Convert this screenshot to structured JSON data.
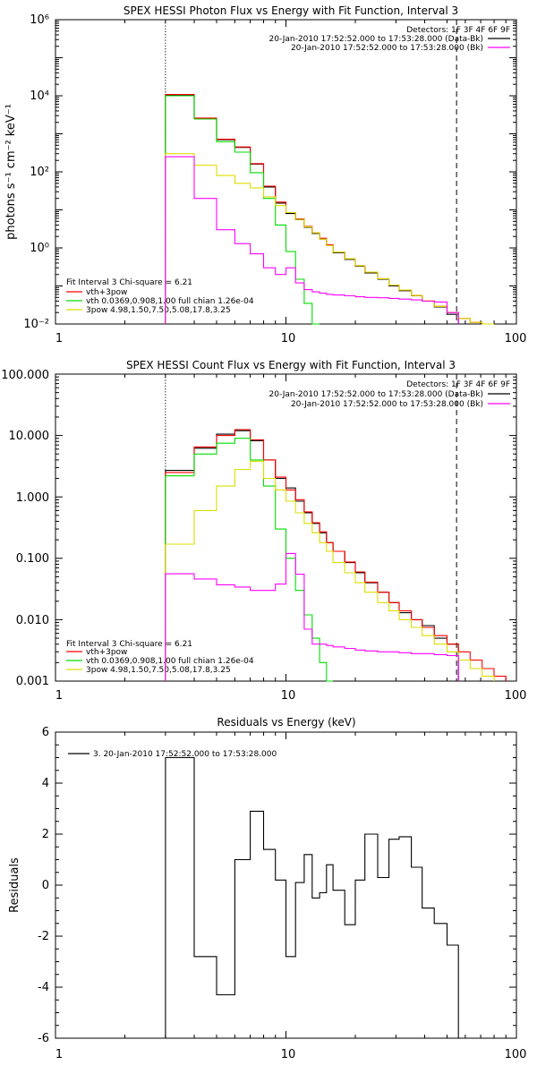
{
  "colors": {
    "data_minus_bk": "#000000",
    "background": "#ff00ff",
    "total_fit": "#ff0000",
    "thermal": "#00dd00",
    "power_law": "#dddd00",
    "marker_orange": "#ff9900"
  },
  "chart_data": [
    {
      "type": "line",
      "title": "SPEX HESSI Photon Flux vs Energy with Fit Function, Interval 3",
      "xlabel": "",
      "ylabel": "photons s⁻¹ cm⁻² keV⁻¹",
      "xscale": "log",
      "yscale": "log",
      "xlim": [
        1,
        100
      ],
      "ylim": [
        0.01,
        1000000
      ],
      "x_ticks": [
        "1",
        "10",
        "100"
      ],
      "y_ticks": [
        "10⁻²",
        "10⁰",
        "10²",
        "10⁴",
        "10⁶"
      ],
      "vlines": [
        {
          "x": 3,
          "style": "dotted"
        },
        {
          "x": 55,
          "style": "dashed"
        }
      ],
      "detectors": "Detectors: 1F 3F 4F 6F 9F",
      "legend_top": [
        {
          "text": "20-Jan-2010 17:52:52.000 to 17:53:28.000 (Data-Bk)",
          "color": "#000000"
        },
        {
          "text": "20-Jan-2010 17:52:52.000 to 17:53:28.000 (Bk)",
          "color": "#ff00ff"
        }
      ],
      "legend_bottom": {
        "header": "Fit Interval 3   Chi-square = 6.21",
        "items": [
          {
            "text": "vth+3pow",
            "color": "#ff0000"
          },
          {
            "text": "vth 0.0369,0.908,1.00  full chian 1.26e-04",
            "color": "#00dd00"
          },
          {
            "text": "3pow 4.98,1.50,7.50,5.08,17.8,3.25",
            "color": "#dddd00"
          }
        ]
      },
      "bin_edges": [
        3,
        4,
        5,
        6,
        7,
        8,
        9,
        10,
        11,
        12,
        13,
        14,
        15,
        16,
        18,
        20,
        22,
        25,
        28,
        31,
        35,
        39,
        44,
        50,
        56,
        63,
        71,
        80
      ],
      "series": [
        {
          "name": "Data-Bk",
          "color": "#000000",
          "values": [
            10500,
            2500,
            700,
            440,
            160,
            40,
            15,
            8,
            5.5,
            3.5,
            2.4,
            1.7,
            1.15,
            0.75,
            0.5,
            0.33,
            0.22,
            0.15,
            0.1,
            0.075,
            0.055,
            0.04,
            0.028,
            0.018,
            null,
            null,
            null
          ]
        },
        {
          "name": "vth+3pow",
          "color": "#ff0000",
          "values": [
            10800,
            2600,
            720,
            450,
            165,
            42,
            16,
            8.5,
            5.8,
            3.7,
            2.5,
            1.8,
            1.2,
            0.78,
            0.52,
            0.34,
            0.23,
            0.155,
            0.105,
            0.078,
            0.056,
            0.041,
            0.029,
            0.02,
            0.014,
            0.011,
            0.009
          ]
        },
        {
          "name": "vth",
          "color": "#00dd00",
          "values": [
            10000,
            2450,
            620,
            330,
            95,
            20,
            4,
            0.8,
            0.15,
            0.035,
            0.01,
            null,
            null,
            null,
            null,
            null,
            null,
            null,
            null,
            null,
            null,
            null,
            null,
            null,
            null,
            null,
            null
          ]
        },
        {
          "name": "3pow",
          "color": "#dddd00",
          "values": [
            300,
            150,
            80,
            50,
            38,
            22,
            13,
            8.5,
            5.6,
            3.6,
            2.5,
            1.7,
            1.15,
            0.78,
            0.52,
            0.34,
            0.23,
            0.155,
            0.105,
            0.078,
            0.056,
            0.041,
            0.029,
            0.02,
            0.014,
            0.011,
            0.009
          ]
        },
        {
          "name": "Bk",
          "color": "#ff00ff",
          "values": [
            250,
            20,
            3,
            1.3,
            0.7,
            0.3,
            0.2,
            0.3,
            0.12,
            0.08,
            0.07,
            0.065,
            0.06,
            0.058,
            0.055,
            0.052,
            0.05,
            0.049,
            0.047,
            0.045,
            0.043,
            0.04,
            0.038,
            0.02,
            null,
            null,
            null
          ]
        }
      ]
    },
    {
      "type": "line",
      "title": "SPEX HESSI Count Flux vs Energy with Fit Function, Interval 3",
      "xlabel": "",
      "ylabel": "",
      "xscale": "log",
      "yscale": "log",
      "xlim": [
        1,
        100
      ],
      "ylim": [
        0.001,
        100
      ],
      "x_ticks": [
        "1",
        "10",
        "100"
      ],
      "y_ticks": [
        "0.001",
        "0.010",
        "0.100",
        "1.000",
        "10.000",
        "100.000"
      ],
      "vlines": [
        {
          "x": 3,
          "style": "dotted"
        },
        {
          "x": 55,
          "style": "dashed"
        }
      ],
      "detectors": "Detectors: 1F 3F 4F 6F 9F",
      "legend_top": [
        {
          "text": "20-Jan-2010 17:52:52.000 to 17:53:28.000 (Data-Bk)",
          "color": "#000000"
        },
        {
          "text": "20-Jan-2010 17:52:52.000 to 17:53:28.000 (Bk)",
          "color": "#ff00ff"
        }
      ],
      "legend_bottom": {
        "header": "Fit Interval 3   Chi-square = 6.21",
        "items": [
          {
            "text": "vth+3pow",
            "color": "#ff0000"
          },
          {
            "text": "vth 0.0369,0.908,1.00  full chian 1.26e-04",
            "color": "#00dd00"
          },
          {
            "text": "3pow 4.98,1.50,7.50,5.08,17.8,3.25",
            "color": "#dddd00"
          }
        ]
      },
      "bin_edges": [
        3,
        4,
        5,
        6,
        7,
        8,
        9,
        10,
        11,
        12,
        13,
        14,
        15,
        16,
        18,
        20,
        22,
        25,
        28,
        31,
        35,
        39,
        44,
        50,
        56,
        63,
        71,
        80,
        90
      ],
      "series": [
        {
          "name": "Data-Bk",
          "color": "#000000",
          "values": [
            2.7,
            6.2,
            10.5,
            12,
            8.2,
            4,
            2,
            1.4,
            0.85,
            0.55,
            0.37,
            0.26,
            0.18,
            0.13,
            0.085,
            0.058,
            0.04,
            0.028,
            0.019,
            0.013,
            0.01,
            0.008,
            0.005,
            0.004,
            null,
            null,
            null,
            null
          ]
        },
        {
          "name": "vth+3pow",
          "color": "#ff0000",
          "values": [
            2.5,
            6.5,
            10,
            12.5,
            8.5,
            4,
            2.1,
            1.3,
            0.9,
            0.57,
            0.38,
            0.27,
            0.18,
            0.13,
            0.087,
            0.06,
            0.041,
            0.028,
            0.019,
            0.014,
            0.01,
            0.0075,
            0.0055,
            0.004,
            0.003,
            0.0022,
            0.0016,
            0.0012
          ]
        },
        {
          "name": "vth",
          "color": "#00dd00",
          "values": [
            2.2,
            5,
            7.5,
            9,
            4,
            1.5,
            0.3,
            0.1,
            0.03,
            0.012,
            0.005,
            0.002,
            0.001,
            null,
            null,
            null,
            null,
            null,
            null,
            null,
            null,
            null,
            null,
            null,
            null,
            null,
            null,
            null
          ]
        },
        {
          "name": "3pow",
          "color": "#dddd00",
          "values": [
            0.17,
            0.6,
            1.5,
            2.8,
            3.8,
            2,
            1.3,
            0.85,
            0.55,
            0.37,
            0.26,
            0.18,
            0.13,
            0.085,
            0.058,
            0.04,
            0.028,
            0.019,
            0.014,
            0.01,
            0.0075,
            0.0055,
            0.004,
            0.003,
            0.0022,
            0.0016,
            0.0012
          ]
        },
        {
          "name": "Bk",
          "color": "#ff00ff",
          "values": [
            0.056,
            0.046,
            0.037,
            0.034,
            0.03,
            0.03,
            0.038,
            0.12,
            0.055,
            0.007,
            0.004,
            0.004,
            0.0038,
            0.0036,
            0.0034,
            0.0032,
            0.0031,
            0.003,
            0.003,
            0.0029,
            0.0028,
            0.0028,
            0.0027,
            0.0026,
            null,
            null,
            null,
            null
          ]
        }
      ]
    },
    {
      "type": "line",
      "title": "Residuals vs Energy (keV)",
      "xlabel": "",
      "ylabel": "Residuals",
      "xscale": "log",
      "yscale": "linear",
      "xlim": [
        1,
        100
      ],
      "ylim": [
        -6,
        6
      ],
      "x_ticks": [
        "1",
        "10",
        "100"
      ],
      "y_ticks": [
        "-6",
        "-4",
        "-2",
        "0",
        "2",
        "4",
        "6"
      ],
      "legend": [
        {
          "text": "3. 20-Jan-2010 17:52:52.000 to 17:53:28.000",
          "color": "#000000"
        }
      ],
      "bin_edges": [
        3,
        4,
        5,
        6,
        7,
        8,
        9,
        10,
        11,
        12,
        13,
        14,
        15,
        16,
        18,
        20,
        22,
        25,
        28,
        31,
        35,
        39,
        44,
        50,
        56
      ],
      "series": [
        {
          "name": "3. 20-Jan-2010 17:52:52.000 to 17:53:28.000",
          "color": "#000000",
          "values": [
            5,
            -2.8,
            -4.3,
            1,
            2.9,
            1.4,
            0.2,
            -2.8,
            0.1,
            1.2,
            -0.5,
            -0.3,
            0.8,
            -0.2,
            -1.55,
            0.2,
            2,
            0.3,
            1.8,
            1.9,
            0.7,
            -0.9,
            -1.5,
            -2.35
          ]
        }
      ]
    }
  ]
}
